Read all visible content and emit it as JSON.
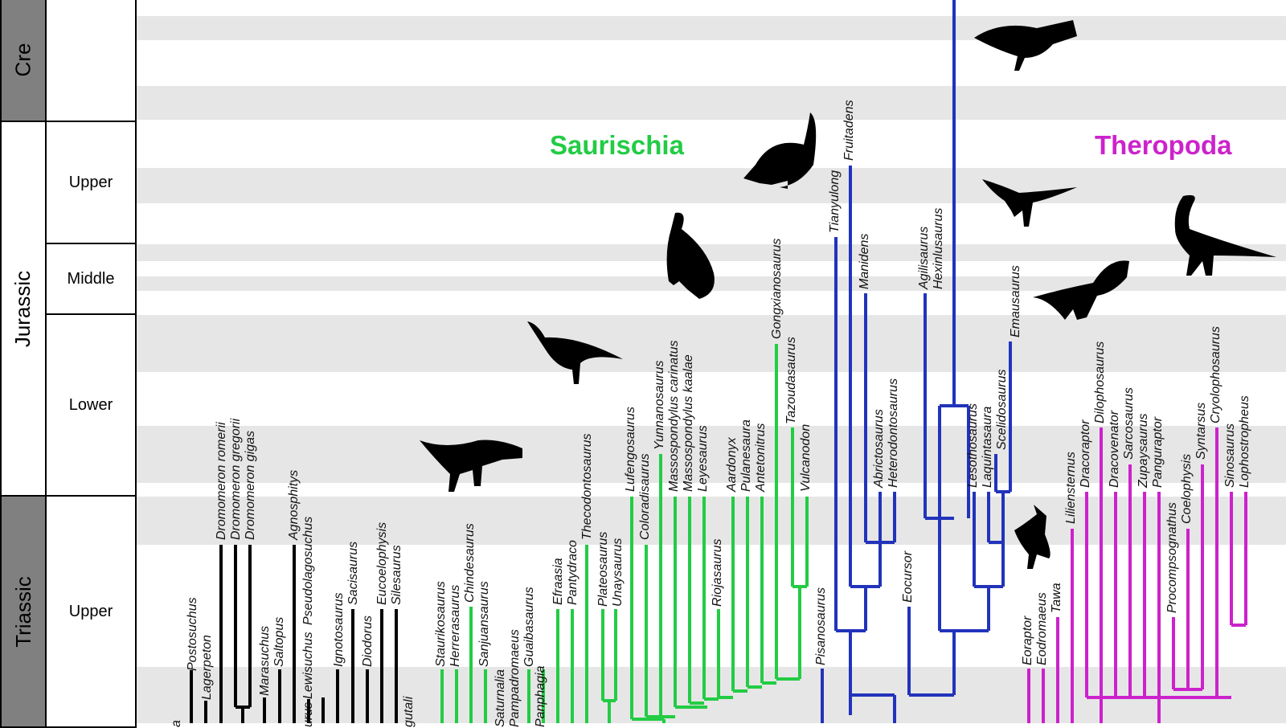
{
  "timescale": {
    "periods": [
      {
        "label": "Cre",
        "shade": "#808080"
      },
      {
        "label": "Jurassic",
        "shade": "#ffffff"
      },
      {
        "label": "Triassic",
        "shade": "#808080"
      }
    ],
    "epochs": [
      "Upper",
      "Middle",
      "Lower",
      "Upper"
    ]
  },
  "clades": [
    {
      "label": "Saurischia",
      "color": "#22cc44"
    },
    {
      "label": "Theropoda",
      "color": "#cc22cc"
    }
  ],
  "colors": {
    "outgroup": "#000000",
    "sauropodomorph": "#22cc44",
    "ornithischian": "#2233bb",
    "theropod": "#cc22cc",
    "band": "#e6e6e6"
  },
  "silhouettes": [
    "hadrosaur-icon",
    "sauropod-icon",
    "prosauropod-icon",
    "basal-sauropodomorph-icon",
    "herrerasaur-icon",
    "compsognathid-icon",
    "coelophysoid-icon",
    "dilophosaur-icon",
    "small-theropod-icon"
  ],
  "taxa": {
    "black": [
      "a",
      "Postosuchus",
      "Lagerpeton",
      "Dromomeron romerii",
      "Dromomeron gregorii",
      "Dromomeron gigas",
      "Marasuchus",
      "Saltopus",
      "Agnosphitys",
      "Lewisuchus",
      "Pseudolagosuchus",
      "urus",
      "Ignotosaurus",
      "Sacisaurus",
      "Diodorus",
      "Eucoelophysis",
      "Silesaurus",
      "gutali"
    ],
    "green": [
      "Staurikosaurus",
      "Herrerasaurus",
      "Chindesaurus",
      "Sanjuansaurus",
      "Saturnalia",
      "Pampadromaeus",
      "Guaibasaurus",
      "Panphagia",
      "Efraasia",
      "Pantydraco",
      "Thecodontosaurus",
      "Plateosaurus",
      "Unaysaurus",
      "Lufengosaurus",
      "Coloradisaurus",
      "Yunnanosaurus",
      "Massospondylus carinatus",
      "Massospondylus kaalae",
      "Leyesaurus",
      "Riojasaurus",
      "Aardonyx",
      "Pulanesaura",
      "Antetonitrus",
      "Gongxianosaurus",
      "Tazoudasaurus",
      "Vulcanodon"
    ],
    "blue": [
      "Pisanosaurus",
      "Tianyulong",
      "Fruitadens",
      "Manidens",
      "Abrictosaurus",
      "Heterodontosaurus",
      "Eocursor",
      "Agilisaurus",
      "Hexinlusaurus",
      "Lesothosaurus",
      "Laquintasaura",
      "Scelidosaurus",
      "Emausaurus"
    ],
    "magenta": [
      "Eoraptor",
      "Eodromaeus",
      "Tawa",
      "Liliensternus",
      "Dracoraptor",
      "Dilophosaurus",
      "Dracovenator",
      "Sarcosaurus",
      "Zupaysaurus",
      "Panguraptor",
      "Procompsognathus",
      "Coelophysis",
      "Syntarsus",
      "Cryolophosaurus",
      "Sinosaurus",
      "Lophostropheus"
    ]
  }
}
